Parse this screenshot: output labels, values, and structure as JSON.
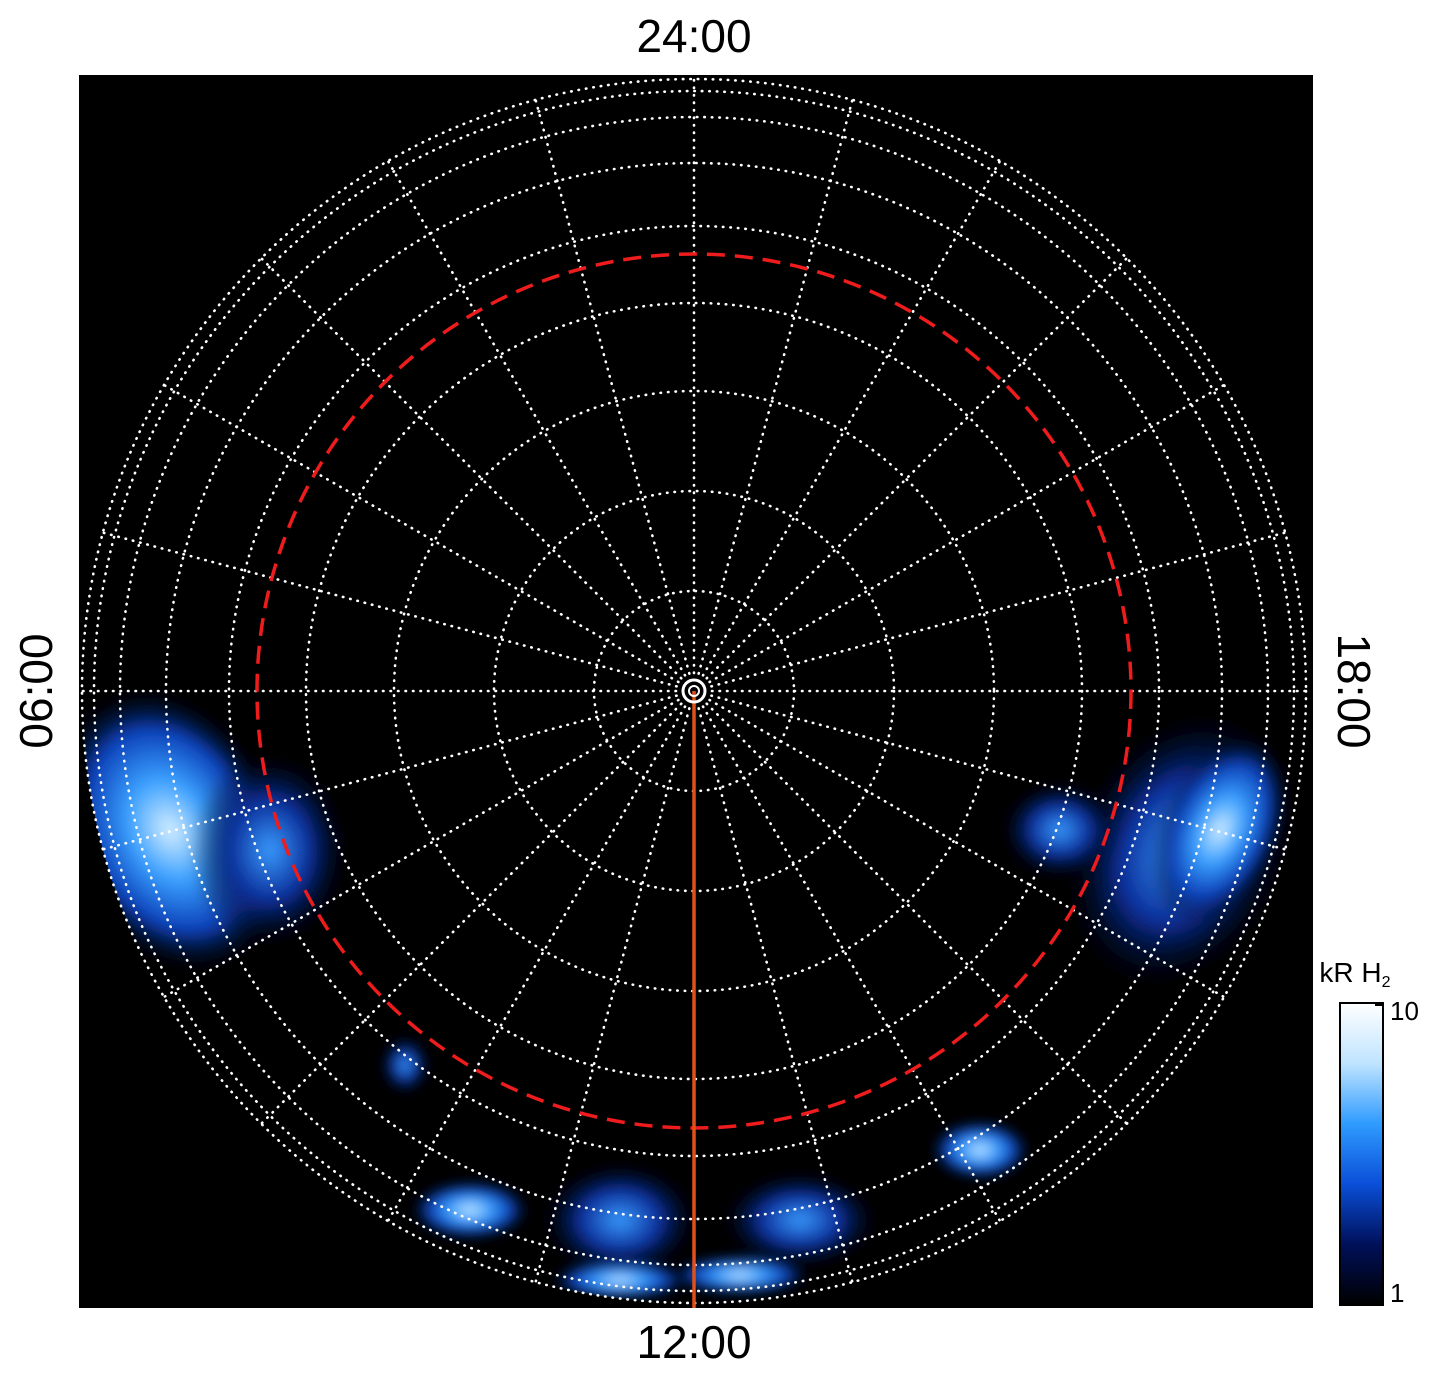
{
  "chart_data": {
    "type": "polar-image",
    "labels": {
      "top": "24:00",
      "bottom": "12:00",
      "left": "06:00",
      "right": "18:00"
    },
    "colorbar": {
      "label": "kR H",
      "label_sub": "2",
      "lim": [
        1,
        10
      ],
      "ticks": [
        1,
        10
      ],
      "log": true,
      "colors": [
        "#000000",
        "#00105a",
        "#0a4fd8",
        "#2f9bff",
        "#bfe4ff",
        "#ffffff"
      ]
    },
    "grid_color": "#ffffff",
    "ring_color": "#ee1c1c",
    "meridian_color": "#e0501a"
  }
}
